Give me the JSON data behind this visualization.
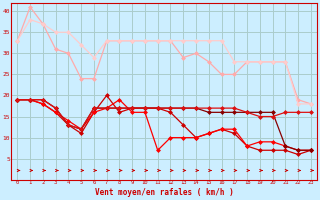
{
  "x": [
    0,
    1,
    2,
    3,
    4,
    5,
    6,
    7,
    8,
    9,
    10,
    11,
    12,
    13,
    14,
    15,
    16,
    17,
    18,
    19,
    20,
    21,
    22,
    23
  ],
  "line1": [
    33,
    41,
    37,
    31,
    30,
    24,
    24,
    33,
    33,
    33,
    33,
    33,
    33,
    29,
    30,
    28,
    25,
    25,
    28,
    28,
    28,
    28,
    19,
    18
  ],
  "line2": [
    33,
    38,
    37,
    35,
    35,
    32,
    29,
    33,
    33,
    33,
    33,
    33,
    33,
    33,
    33,
    33,
    33,
    28,
    28,
    28,
    28,
    28,
    18,
    18
  ],
  "line3": [
    19,
    19,
    18,
    16,
    13,
    11,
    16,
    20,
    16,
    17,
    17,
    17,
    16,
    13,
    10,
    11,
    12,
    11,
    8,
    7,
    7,
    7,
    6,
    7
  ],
  "line4": [
    19,
    19,
    18,
    16,
    14,
    12,
    16,
    17,
    19,
    16,
    16,
    7,
    10,
    10,
    10,
    11,
    12,
    12,
    8,
    9,
    9,
    8,
    7,
    7
  ],
  "line5": [
    19,
    19,
    19,
    17,
    13,
    12,
    17,
    17,
    17,
    17,
    17,
    17,
    17,
    17,
    17,
    16,
    16,
    16,
    16,
    16,
    16,
    8,
    7,
    7
  ],
  "line6": [
    19,
    19,
    19,
    17,
    13,
    12,
    17,
    17,
    17,
    17,
    17,
    17,
    17,
    17,
    17,
    17,
    17,
    17,
    16,
    15,
    15,
    16,
    16,
    16
  ],
  "color1": "#ffaaaa",
  "color2": "#ffcccc",
  "color3": "#cc0000",
  "color4": "#ff0000",
  "color5": "#880000",
  "color6": "#dd1111",
  "bg_color": "#cceeff",
  "grid_color": "#aacccc",
  "xlabel": "Vent moyen/en rafales ( km/h )",
  "ylim": [
    0,
    42
  ],
  "yticks": [
    5,
    10,
    15,
    20,
    25,
    30,
    35,
    40
  ],
  "xticks": [
    0,
    1,
    2,
    3,
    4,
    5,
    6,
    7,
    8,
    9,
    10,
    11,
    12,
    13,
    14,
    15,
    16,
    17,
    18,
    19,
    20,
    21,
    22,
    23
  ]
}
